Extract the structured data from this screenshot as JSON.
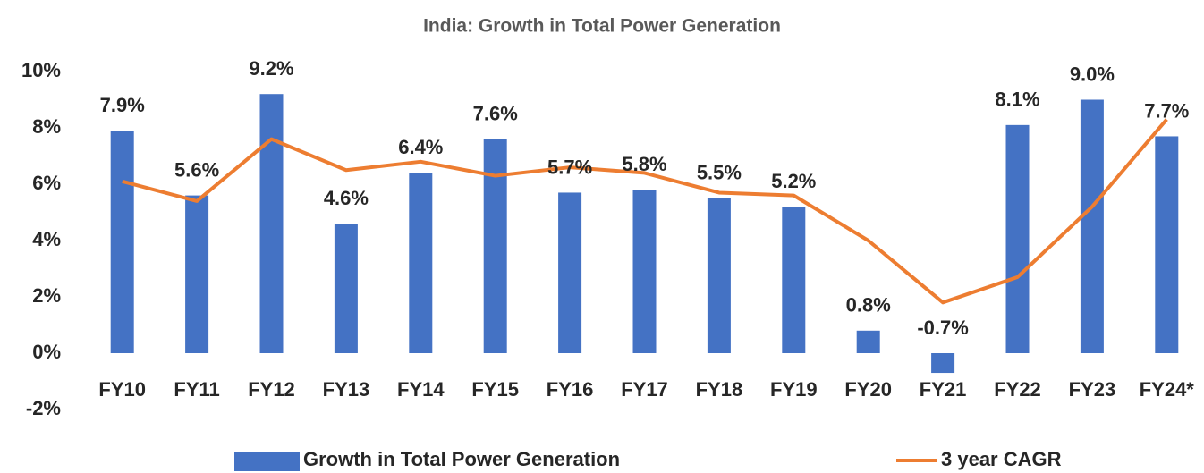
{
  "chart_data": {
    "type": "combo",
    "title": "India: Growth in Total Power Generation",
    "categories": [
      "FY10",
      "FY11",
      "FY12",
      "FY13",
      "FY14",
      "FY15",
      "FY16",
      "FY17",
      "FY18",
      "FY19",
      "FY20",
      "FY21",
      "FY22",
      "FY23",
      "FY24*"
    ],
    "series": [
      {
        "name": "Growth in Total Power Generation",
        "type": "bar",
        "color": "#4472c4",
        "values": [
          7.9,
          5.6,
          9.2,
          4.6,
          6.4,
          7.6,
          5.7,
          5.8,
          5.5,
          5.2,
          0.8,
          -0.7,
          8.1,
          9.0,
          7.7
        ],
        "value_labels": [
          "7.9%",
          "5.6%",
          "9.2%",
          "4.6%",
          "6.4%",
          "7.6%",
          "5.7%",
          "5.8%",
          "5.5%",
          "5.2%",
          "0.8%",
          "-0.7%",
          "8.1%",
          "9.0%",
          "7.7%"
        ]
      },
      {
        "name": "3 year CAGR",
        "type": "line",
        "color": "#ed7d31",
        "values": [
          6.1,
          5.4,
          7.6,
          6.5,
          6.8,
          6.3,
          6.6,
          6.4,
          5.7,
          5.6,
          4.0,
          1.8,
          2.7,
          5.2,
          8.3
        ]
      }
    ],
    "ylim": [
      -2,
      10
    ],
    "yticks": [
      {
        "value": -2,
        "label": "-2%"
      },
      {
        "value": 0,
        "label": "0%"
      },
      {
        "value": 2,
        "label": "2%"
      },
      {
        "value": 4,
        "label": "4%"
      },
      {
        "value": 6,
        "label": "6%"
      },
      {
        "value": 8,
        "label": "8%"
      },
      {
        "value": 10,
        "label": "10%"
      }
    ],
    "grid": false,
    "legend": "bottom"
  }
}
